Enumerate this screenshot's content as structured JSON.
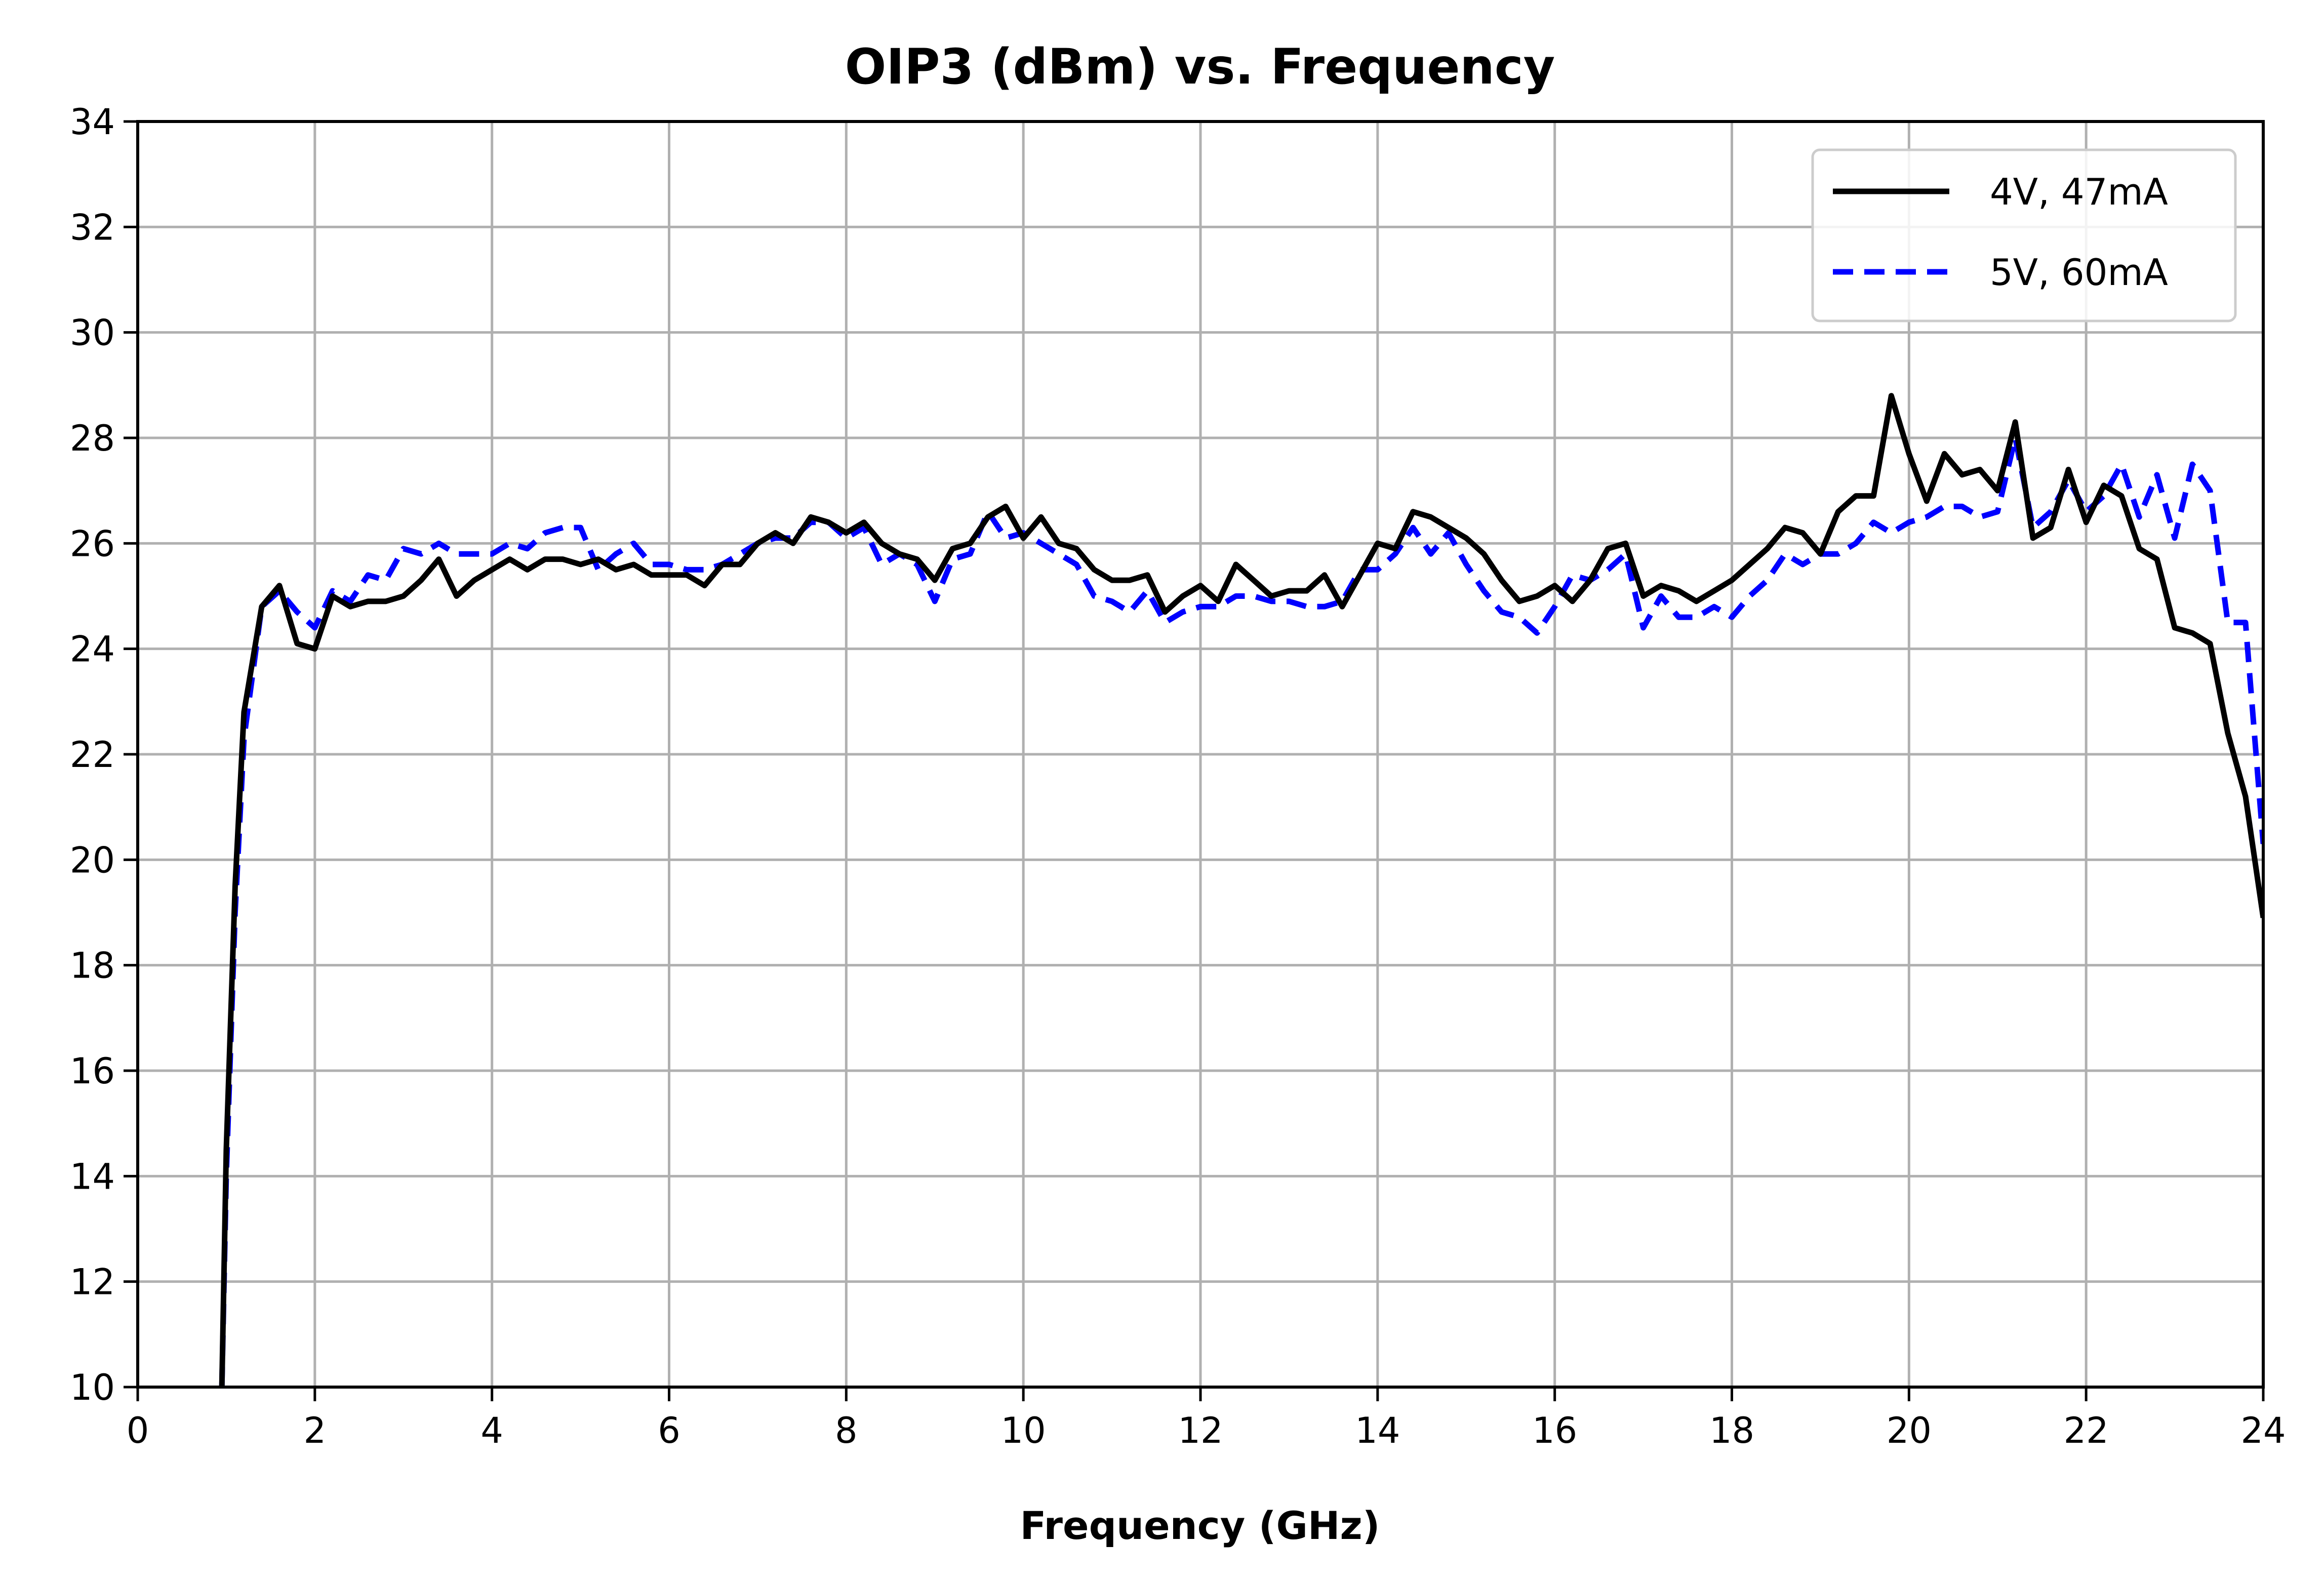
{
  "chart_data": {
    "type": "line",
    "title": "OIP3 (dBm) vs. Frequency",
    "xlabel": "Frequency (GHz)",
    "ylabel": "",
    "xlim": [
      0,
      24
    ],
    "ylim": [
      10,
      34
    ],
    "xticks": [
      0,
      2,
      4,
      6,
      8,
      10,
      12,
      14,
      16,
      18,
      20,
      22,
      24
    ],
    "yticks": [
      10,
      12,
      14,
      16,
      18,
      20,
      22,
      24,
      26,
      28,
      30,
      32,
      34
    ],
    "grid": true,
    "legend_position": "top-right",
    "series": [
      {
        "name": "4V, 47mA",
        "color": "#000000",
        "dash": "solid",
        "points": [
          [
            0.95,
            10.0
          ],
          [
            1.0,
            14.5
          ],
          [
            1.1,
            19.5
          ],
          [
            1.2,
            22.8
          ],
          [
            1.4,
            24.8
          ],
          [
            1.6,
            25.2
          ],
          [
            1.8,
            24.1
          ],
          [
            2.0,
            24.0
          ],
          [
            2.2,
            25.0
          ],
          [
            2.4,
            24.8
          ],
          [
            2.6,
            24.9
          ],
          [
            2.8,
            24.9
          ],
          [
            3.0,
            25.0
          ],
          [
            3.2,
            25.3
          ],
          [
            3.4,
            25.7
          ],
          [
            3.6,
            25.0
          ],
          [
            3.8,
            25.3
          ],
          [
            4.0,
            25.5
          ],
          [
            4.2,
            25.7
          ],
          [
            4.4,
            25.5
          ],
          [
            4.6,
            25.7
          ],
          [
            4.8,
            25.7
          ],
          [
            5.0,
            25.6
          ],
          [
            5.2,
            25.7
          ],
          [
            5.4,
            25.5
          ],
          [
            5.6,
            25.6
          ],
          [
            5.8,
            25.4
          ],
          [
            6.0,
            25.4
          ],
          [
            6.2,
            25.4
          ],
          [
            6.4,
            25.2
          ],
          [
            6.6,
            25.6
          ],
          [
            6.8,
            25.6
          ],
          [
            7.0,
            26.0
          ],
          [
            7.2,
            26.2
          ],
          [
            7.4,
            26.0
          ],
          [
            7.6,
            26.5
          ],
          [
            7.8,
            26.4
          ],
          [
            8.0,
            26.2
          ],
          [
            8.2,
            26.4
          ],
          [
            8.4,
            26.0
          ],
          [
            8.6,
            25.8
          ],
          [
            8.8,
            25.7
          ],
          [
            9.0,
            25.3
          ],
          [
            9.2,
            25.9
          ],
          [
            9.4,
            26.0
          ],
          [
            9.6,
            26.5
          ],
          [
            9.8,
            26.7
          ],
          [
            10.0,
            26.1
          ],
          [
            10.2,
            26.5
          ],
          [
            10.4,
            26.0
          ],
          [
            10.6,
            25.9
          ],
          [
            10.8,
            25.5
          ],
          [
            11.0,
            25.3
          ],
          [
            11.2,
            25.3
          ],
          [
            11.4,
            25.4
          ],
          [
            11.6,
            24.7
          ],
          [
            11.8,
            25.0
          ],
          [
            12.0,
            25.2
          ],
          [
            12.2,
            24.9
          ],
          [
            12.4,
            25.6
          ],
          [
            12.6,
            25.3
          ],
          [
            12.8,
            25.0
          ],
          [
            13.0,
            25.1
          ],
          [
            13.2,
            25.1
          ],
          [
            13.4,
            25.4
          ],
          [
            13.6,
            24.8
          ],
          [
            13.8,
            25.4
          ],
          [
            14.0,
            26.0
          ],
          [
            14.2,
            25.9
          ],
          [
            14.4,
            26.6
          ],
          [
            14.6,
            26.5
          ],
          [
            14.8,
            26.3
          ],
          [
            15.0,
            26.1
          ],
          [
            15.2,
            25.8
          ],
          [
            15.4,
            25.3
          ],
          [
            15.6,
            24.9
          ],
          [
            15.8,
            25.0
          ],
          [
            16.0,
            25.2
          ],
          [
            16.2,
            24.9
          ],
          [
            16.4,
            25.3
          ],
          [
            16.6,
            25.9
          ],
          [
            16.8,
            26.0
          ],
          [
            17.0,
            25.0
          ],
          [
            17.2,
            25.2
          ],
          [
            17.4,
            25.1
          ],
          [
            17.6,
            24.9
          ],
          [
            17.8,
            25.1
          ],
          [
            18.0,
            25.3
          ],
          [
            18.2,
            25.6
          ],
          [
            18.4,
            25.9
          ],
          [
            18.6,
            26.3
          ],
          [
            18.8,
            26.2
          ],
          [
            19.0,
            25.8
          ],
          [
            19.2,
            26.6
          ],
          [
            19.4,
            26.9
          ],
          [
            19.6,
            26.9
          ],
          [
            19.8,
            28.8
          ],
          [
            20.0,
            27.7
          ],
          [
            20.2,
            26.8
          ],
          [
            20.4,
            27.7
          ],
          [
            20.6,
            27.3
          ],
          [
            20.8,
            27.4
          ],
          [
            21.0,
            27.0
          ],
          [
            21.2,
            28.3
          ],
          [
            21.4,
            26.1
          ],
          [
            21.6,
            26.3
          ],
          [
            21.8,
            27.4
          ],
          [
            22.0,
            26.4
          ],
          [
            22.2,
            27.1
          ],
          [
            22.4,
            26.9
          ],
          [
            22.6,
            25.9
          ],
          [
            22.8,
            25.7
          ],
          [
            23.0,
            24.4
          ],
          [
            23.2,
            24.3
          ],
          [
            23.4,
            24.1
          ],
          [
            23.6,
            22.4
          ],
          [
            23.8,
            21.2
          ],
          [
            24.0,
            18.9
          ]
        ]
      },
      {
        "name": "5V, 60mA",
        "color": "#0000ff",
        "dash": "dashed",
        "points": [
          [
            0.95,
            10.0
          ],
          [
            1.0,
            14.0
          ],
          [
            1.1,
            19.0
          ],
          [
            1.2,
            22.3
          ],
          [
            1.4,
            24.8
          ],
          [
            1.6,
            25.1
          ],
          [
            1.8,
            24.7
          ],
          [
            2.0,
            24.4
          ],
          [
            2.2,
            25.1
          ],
          [
            2.4,
            24.9
          ],
          [
            2.6,
            25.4
          ],
          [
            2.8,
            25.3
          ],
          [
            3.0,
            25.9
          ],
          [
            3.2,
            25.8
          ],
          [
            3.4,
            26.0
          ],
          [
            3.6,
            25.8
          ],
          [
            3.8,
            25.8
          ],
          [
            4.0,
            25.8
          ],
          [
            4.2,
            26.0
          ],
          [
            4.4,
            25.9
          ],
          [
            4.6,
            26.2
          ],
          [
            4.8,
            26.3
          ],
          [
            5.0,
            26.3
          ],
          [
            5.2,
            25.5
          ],
          [
            5.4,
            25.8
          ],
          [
            5.6,
            26.0
          ],
          [
            5.8,
            25.6
          ],
          [
            6.0,
            25.6
          ],
          [
            6.2,
            25.5
          ],
          [
            6.4,
            25.5
          ],
          [
            6.6,
            25.6
          ],
          [
            6.8,
            25.8
          ],
          [
            7.0,
            26.0
          ],
          [
            7.2,
            26.1
          ],
          [
            7.4,
            26.1
          ],
          [
            7.6,
            26.4
          ],
          [
            7.8,
            26.4
          ],
          [
            8.0,
            26.1
          ],
          [
            8.2,
            26.3
          ],
          [
            8.4,
            25.6
          ],
          [
            8.6,
            25.8
          ],
          [
            8.8,
            25.6
          ],
          [
            9.0,
            24.9
          ],
          [
            9.2,
            25.7
          ],
          [
            9.4,
            25.8
          ],
          [
            9.6,
            26.6
          ],
          [
            9.8,
            26.1
          ],
          [
            10.0,
            26.2
          ],
          [
            10.2,
            26.0
          ],
          [
            10.4,
            25.8
          ],
          [
            10.6,
            25.6
          ],
          [
            10.8,
            25.0
          ],
          [
            11.0,
            24.9
          ],
          [
            11.2,
            24.7
          ],
          [
            11.4,
            25.1
          ],
          [
            11.6,
            24.5
          ],
          [
            11.8,
            24.7
          ],
          [
            12.0,
            24.8
          ],
          [
            12.2,
            24.8
          ],
          [
            12.4,
            25.0
          ],
          [
            12.6,
            25.0
          ],
          [
            12.8,
            24.9
          ],
          [
            13.0,
            24.9
          ],
          [
            13.2,
            24.8
          ],
          [
            13.4,
            24.8
          ],
          [
            13.6,
            24.9
          ],
          [
            13.8,
            25.5
          ],
          [
            14.0,
            25.5
          ],
          [
            14.2,
            25.8
          ],
          [
            14.4,
            26.3
          ],
          [
            14.6,
            25.8
          ],
          [
            14.8,
            26.2
          ],
          [
            15.0,
            25.6
          ],
          [
            15.2,
            25.1
          ],
          [
            15.4,
            24.7
          ],
          [
            15.6,
            24.6
          ],
          [
            15.8,
            24.3
          ],
          [
            16.0,
            24.8
          ],
          [
            16.2,
            25.4
          ],
          [
            16.4,
            25.3
          ],
          [
            16.6,
            25.5
          ],
          [
            16.8,
            25.8
          ],
          [
            17.0,
            24.4
          ],
          [
            17.2,
            25.0
          ],
          [
            17.4,
            24.6
          ],
          [
            17.6,
            24.6
          ],
          [
            17.8,
            24.8
          ],
          [
            18.0,
            24.6
          ],
          [
            18.2,
            25.0
          ],
          [
            18.4,
            25.3
          ],
          [
            18.6,
            25.8
          ],
          [
            18.8,
            25.6
          ],
          [
            19.0,
            25.8
          ],
          [
            19.2,
            25.8
          ],
          [
            19.4,
            26.0
          ],
          [
            19.6,
            26.4
          ],
          [
            19.8,
            26.2
          ],
          [
            20.0,
            26.4
          ],
          [
            20.2,
            26.5
          ],
          [
            20.4,
            26.7
          ],
          [
            20.6,
            26.7
          ],
          [
            20.8,
            26.5
          ],
          [
            21.0,
            26.6
          ],
          [
            21.2,
            28.0
          ],
          [
            21.4,
            26.3
          ],
          [
            21.6,
            26.6
          ],
          [
            21.8,
            27.2
          ],
          [
            22.0,
            26.6
          ],
          [
            22.2,
            26.9
          ],
          [
            22.4,
            27.5
          ],
          [
            22.6,
            26.5
          ],
          [
            22.8,
            27.3
          ],
          [
            23.0,
            26.1
          ],
          [
            23.2,
            27.5
          ],
          [
            23.4,
            27.0
          ],
          [
            23.6,
            24.5
          ],
          [
            23.8,
            24.5
          ],
          [
            24.0,
            20.3
          ]
        ]
      }
    ]
  }
}
